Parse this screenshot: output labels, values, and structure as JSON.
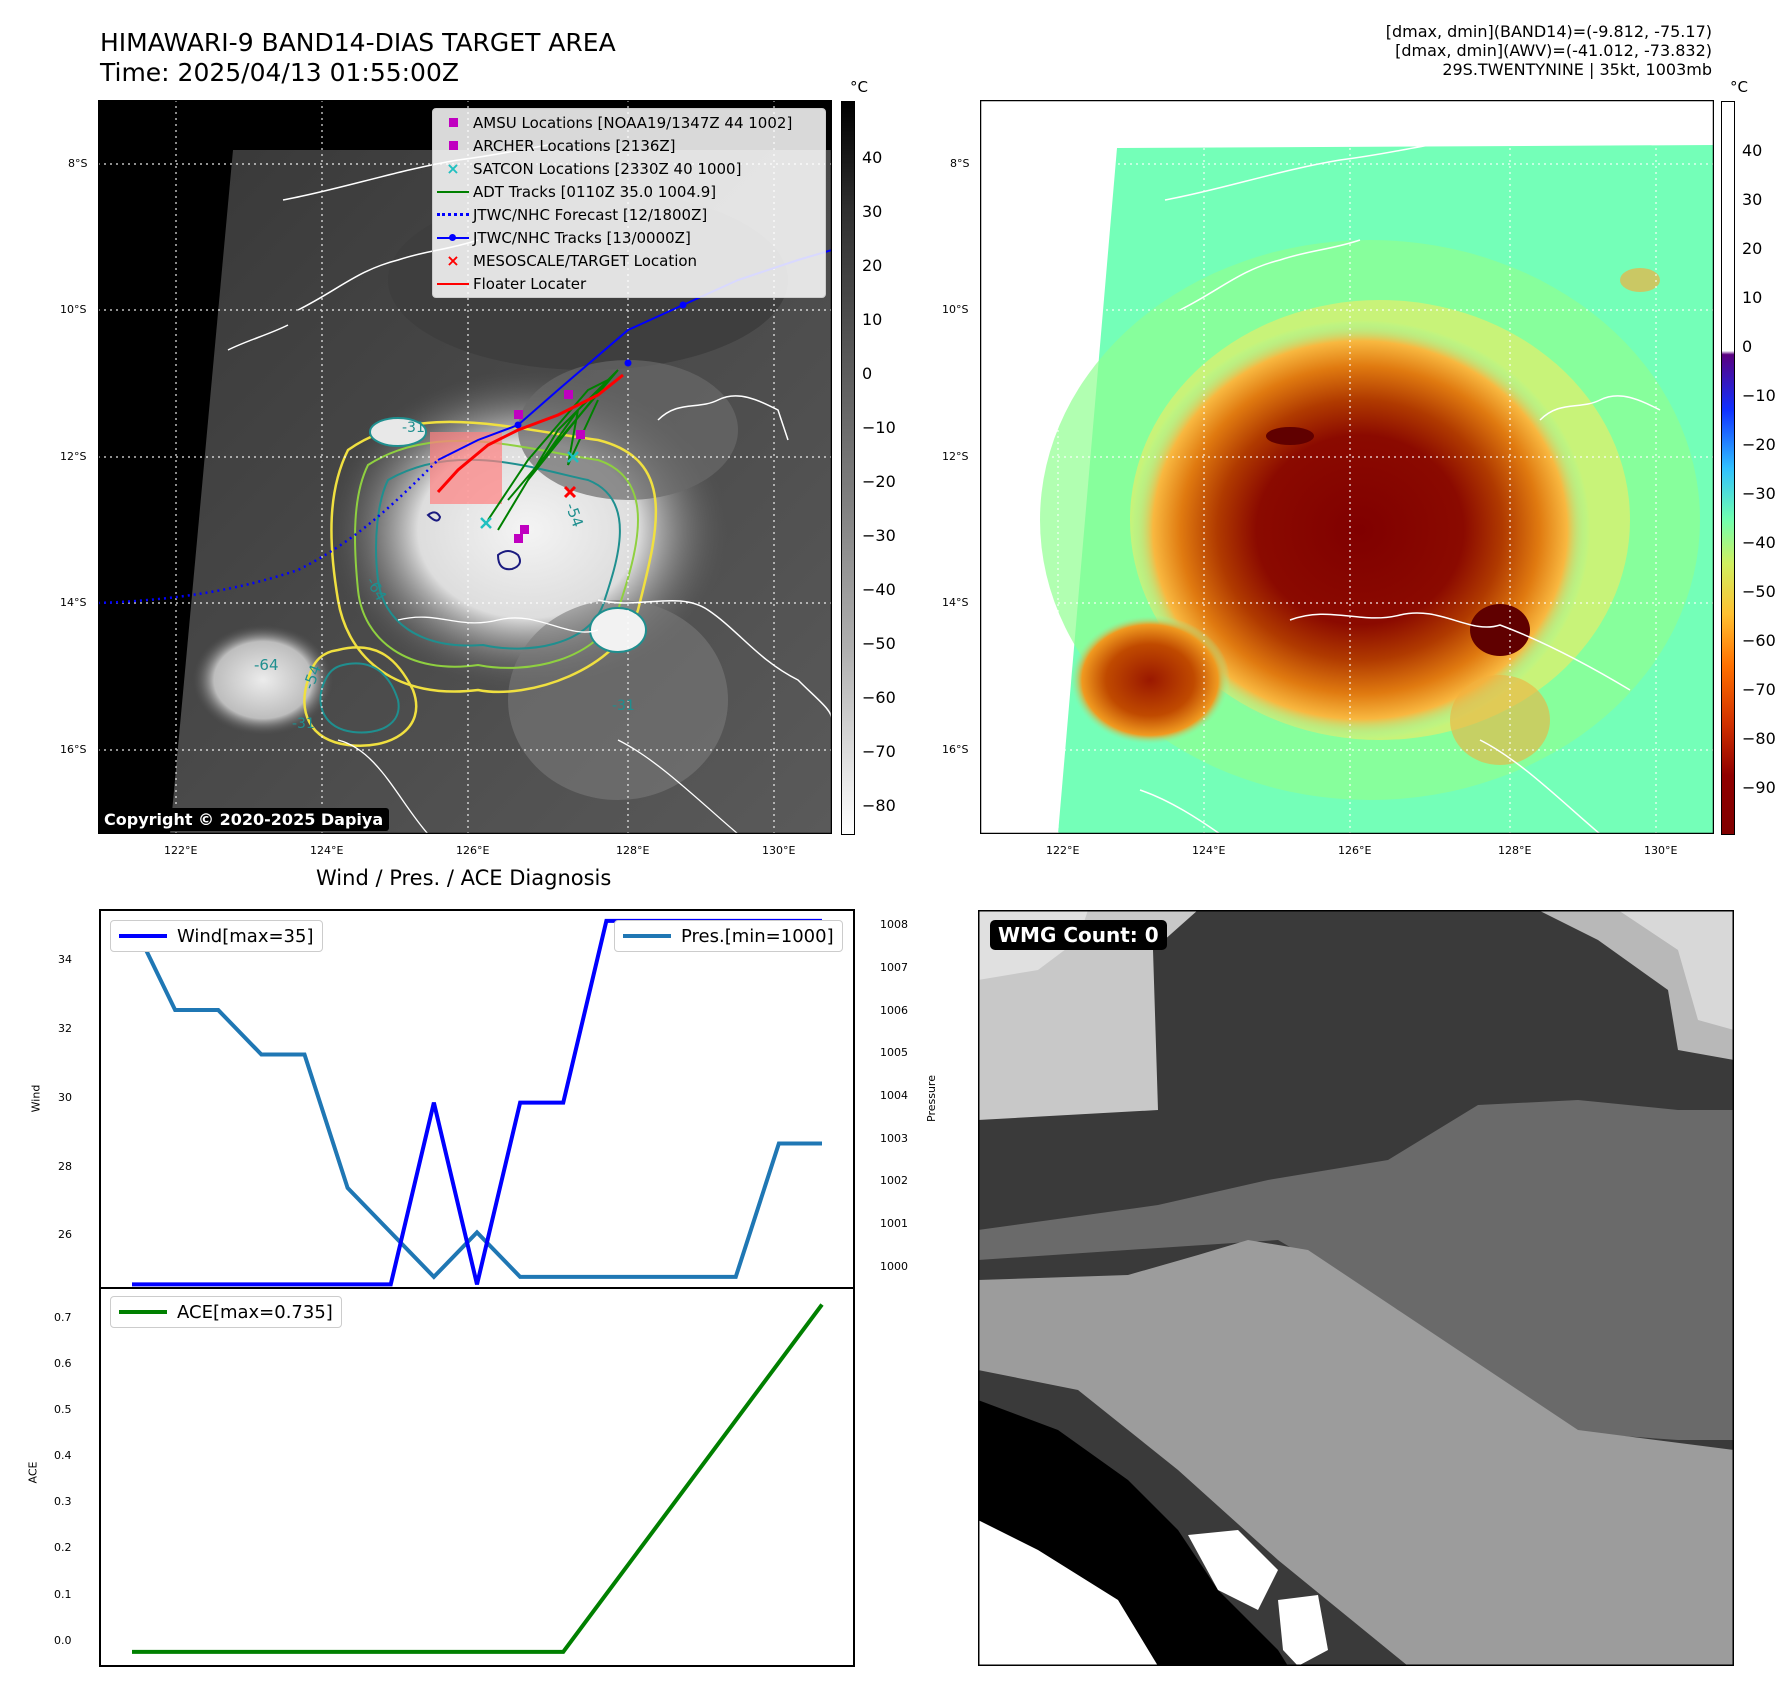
{
  "header": {
    "title_line1": "HIMAWARI-9 BAND14-DIAS TARGET AREA",
    "title_line2": "Time: 2025/04/13 01:55:00Z",
    "info_line1": "[dmax, dmin](BAND14)=(-9.812, -75.17)",
    "info_line2": "[dmax, dmin](AWV)=(-41.012, -73.832)",
    "info_line3": "29S.TWENTYNINE | 35kt, 1003mb"
  },
  "map": {
    "lon_ticks": [
      "122°E",
      "124°E",
      "126°E",
      "128°E",
      "130°E"
    ],
    "lat_ticks": [
      "8°S",
      "10°S",
      "12°S",
      "14°S",
      "16°S"
    ],
    "contour_labels": [
      "-64",
      "-54",
      "-31",
      "-64",
      "-54",
      "-31",
      "-31"
    ],
    "copyright": "Copyright © 2020-2025 Dapiya"
  },
  "legend": [
    {
      "label": "AMSU Locations [NOAA19/1347Z 44 1002]",
      "symbol": "square",
      "color": "#c000c0"
    },
    {
      "label": "ARCHER Locations [2136Z]",
      "symbol": "square",
      "color": "#c000c0"
    },
    {
      "label": "SATCON Locations [2330Z 40 1000]",
      "symbol": "x",
      "color": "#20c0c0"
    },
    {
      "label": "ADT Tracks [0110Z 35.0 1004.9]",
      "symbol": "line",
      "color": "#008000"
    },
    {
      "label": "JTWC/NHC Forecast [12/1800Z]",
      "symbol": "dotted",
      "color": "#0000ff"
    },
    {
      "label": "JTWC/NHC Tracks [13/0000Z]",
      "symbol": "line-dot",
      "color": "#0000ff"
    },
    {
      "label": "MESOSCALE/TARGET Location",
      "symbol": "x",
      "color": "#ff0000"
    },
    {
      "label": "Floater Locater",
      "symbol": "line",
      "color": "#ff0000"
    }
  ],
  "colorbar_left": {
    "unit": "°C",
    "ticks": [
      "40",
      "30",
      "20",
      "10",
      "0",
      "−10",
      "−20",
      "−30",
      "−40",
      "−50",
      "−60",
      "−70",
      "−80"
    ]
  },
  "colorbar_right": {
    "unit": "°C",
    "ticks": [
      "40",
      "30",
      "20",
      "10",
      "0",
      "−10",
      "−20",
      "−30",
      "−40",
      "−50",
      "−60",
      "−70",
      "−80",
      "−90"
    ]
  },
  "diagnosis": {
    "title": "Wind / Pres. / ACE Diagnosis",
    "wind_label": "Wind",
    "pressure_label": "Pressure",
    "ace_label": "ACE",
    "wind_legend": "Wind[max=35]",
    "pres_legend": "Pres.[min=1000]",
    "ace_legend": "ACE[max=0.735]",
    "wind_ticks": [
      "34",
      "32",
      "30",
      "28",
      "26"
    ],
    "pres_ticks": [
      "1008",
      "1007",
      "1006",
      "1005",
      "1004",
      "1003",
      "1002",
      "1001",
      "1000"
    ],
    "ace_ticks": [
      "0.7",
      "0.6",
      "0.5",
      "0.4",
      "0.3",
      "0.2",
      "0.1",
      "0.0"
    ],
    "colors": {
      "wind": "#0000ff",
      "pressure": "#1f77b4",
      "ace": "#008000"
    }
  },
  "wmg": {
    "label": "WMG Count: 0"
  },
  "chart_data": [
    {
      "type": "line",
      "title": "Wind / Pres. / ACE Diagnosis",
      "x": [
        0,
        1,
        2,
        3,
        4,
        5,
        6,
        7,
        8,
        9,
        10,
        11,
        12,
        13,
        14,
        15,
        16
      ],
      "series": [
        {
          "name": "Wind[max=35]",
          "axis": "left",
          "ylabel": "Wind",
          "values": [
            25,
            25,
            25,
            25,
            25,
            25,
            25,
            30,
            25,
            30,
            30,
            35,
            35,
            35,
            35,
            35,
            35
          ]
        },
        {
          "name": "Pres.[min=1000]",
          "axis": "right",
          "ylabel": "Pressure",
          "values": [
            1008,
            1006,
            1006,
            1005,
            1005,
            1002,
            1001,
            1000,
            1001,
            1000,
            1000,
            1000,
            1000,
            1000,
            1000,
            1003,
            1003
          ]
        }
      ],
      "ylim_left": [
        24.9,
        35.3
      ],
      "ylim_right": [
        999.75,
        1008.25
      ]
    },
    {
      "type": "line",
      "x": [
        0,
        1,
        2,
        3,
        4,
        5,
        6,
        7,
        8,
        9,
        10,
        11,
        12,
        13,
        14,
        15,
        16
      ],
      "series": [
        {
          "name": "ACE[max=0.735]",
          "ylabel": "ACE",
          "values": [
            0,
            0,
            0,
            0,
            0,
            0,
            0,
            0,
            0,
            0,
            0,
            0.1225,
            0.245,
            0.3675,
            0.49,
            0.6125,
            0.735
          ]
        }
      ],
      "ylim": [
        -0.03,
        0.77
      ]
    }
  ]
}
